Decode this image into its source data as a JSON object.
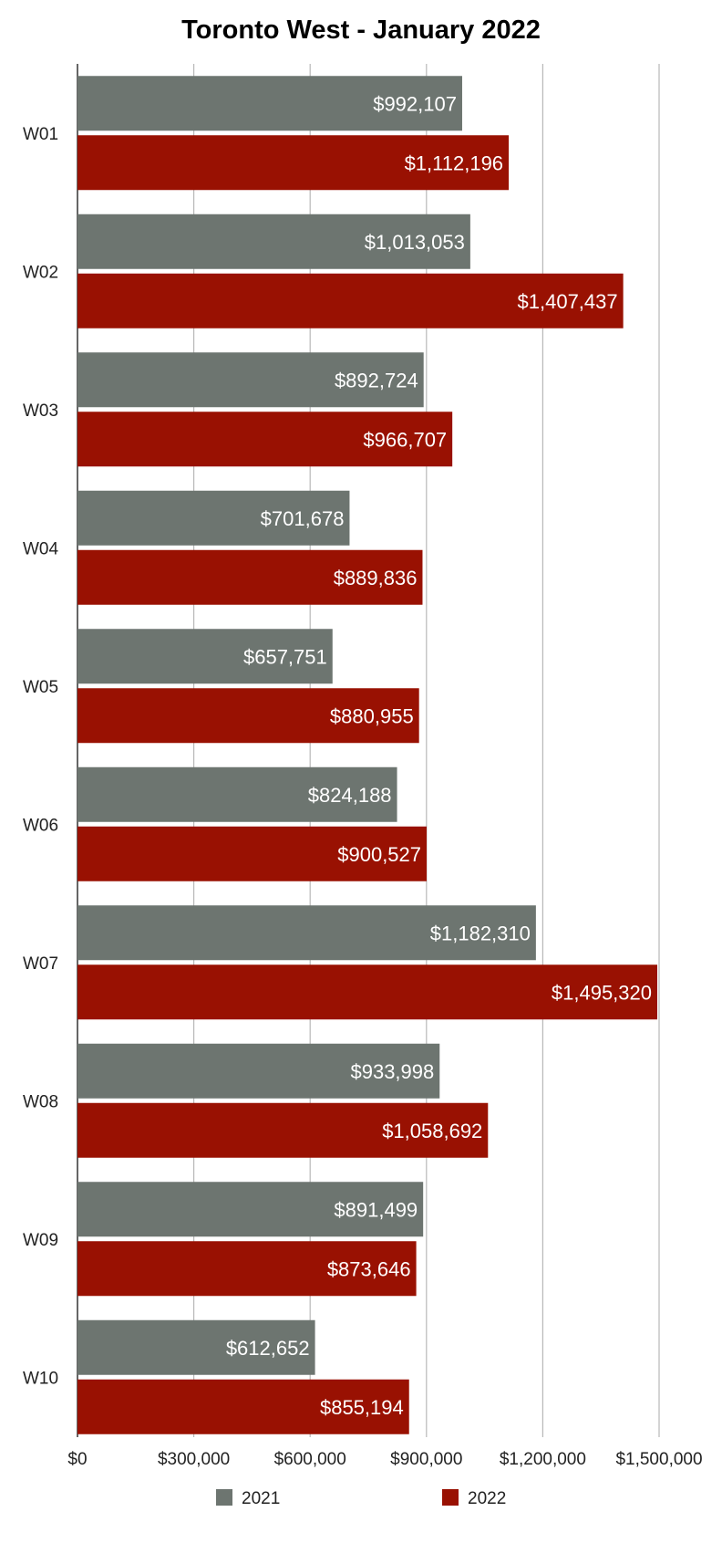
{
  "chart_data": {
    "type": "bar",
    "orientation": "horizontal",
    "title": "Toronto West - January 2022",
    "xlabel": "",
    "ylabel": "",
    "categories": [
      "W01",
      "W02",
      "W03",
      "W04",
      "W05",
      "W06",
      "W07",
      "W08",
      "W09",
      "W10"
    ],
    "series": [
      {
        "name": "2021",
        "color": "#6d7570",
        "values": [
          992107,
          1013053,
          892724,
          701678,
          657751,
          824188,
          1182310,
          933998,
          891499,
          612652
        ],
        "labels": [
          "$992,107",
          "$1,013,053",
          "$892,724",
          "$701,678",
          "$657,751",
          "$824,188",
          "$1,182,310",
          "$933,998",
          "$891,499",
          "$612,652"
        ]
      },
      {
        "name": "2022",
        "color": "#991102",
        "values": [
          1112196,
          1407437,
          966707,
          889836,
          880955,
          900527,
          1495320,
          1058692,
          873646,
          855194
        ],
        "labels": [
          "$1,112,196",
          "$1,407,437",
          "$966,707",
          "$889,836",
          "$880,955",
          "$900,527",
          "$1,495,320",
          "$1,058,692",
          "$873,646",
          "$855,194"
        ]
      }
    ],
    "xlim": [
      0,
      1500000
    ],
    "xticks": [
      0,
      300000,
      600000,
      900000,
      1200000,
      1500000
    ],
    "xtick_labels": [
      "$0",
      "$300,000",
      "$600,000",
      "$900,000",
      "$1,200,000",
      "$1,500,000"
    ],
    "grid": true,
    "legend_position": "bottom",
    "data_labels": "inside-end"
  }
}
